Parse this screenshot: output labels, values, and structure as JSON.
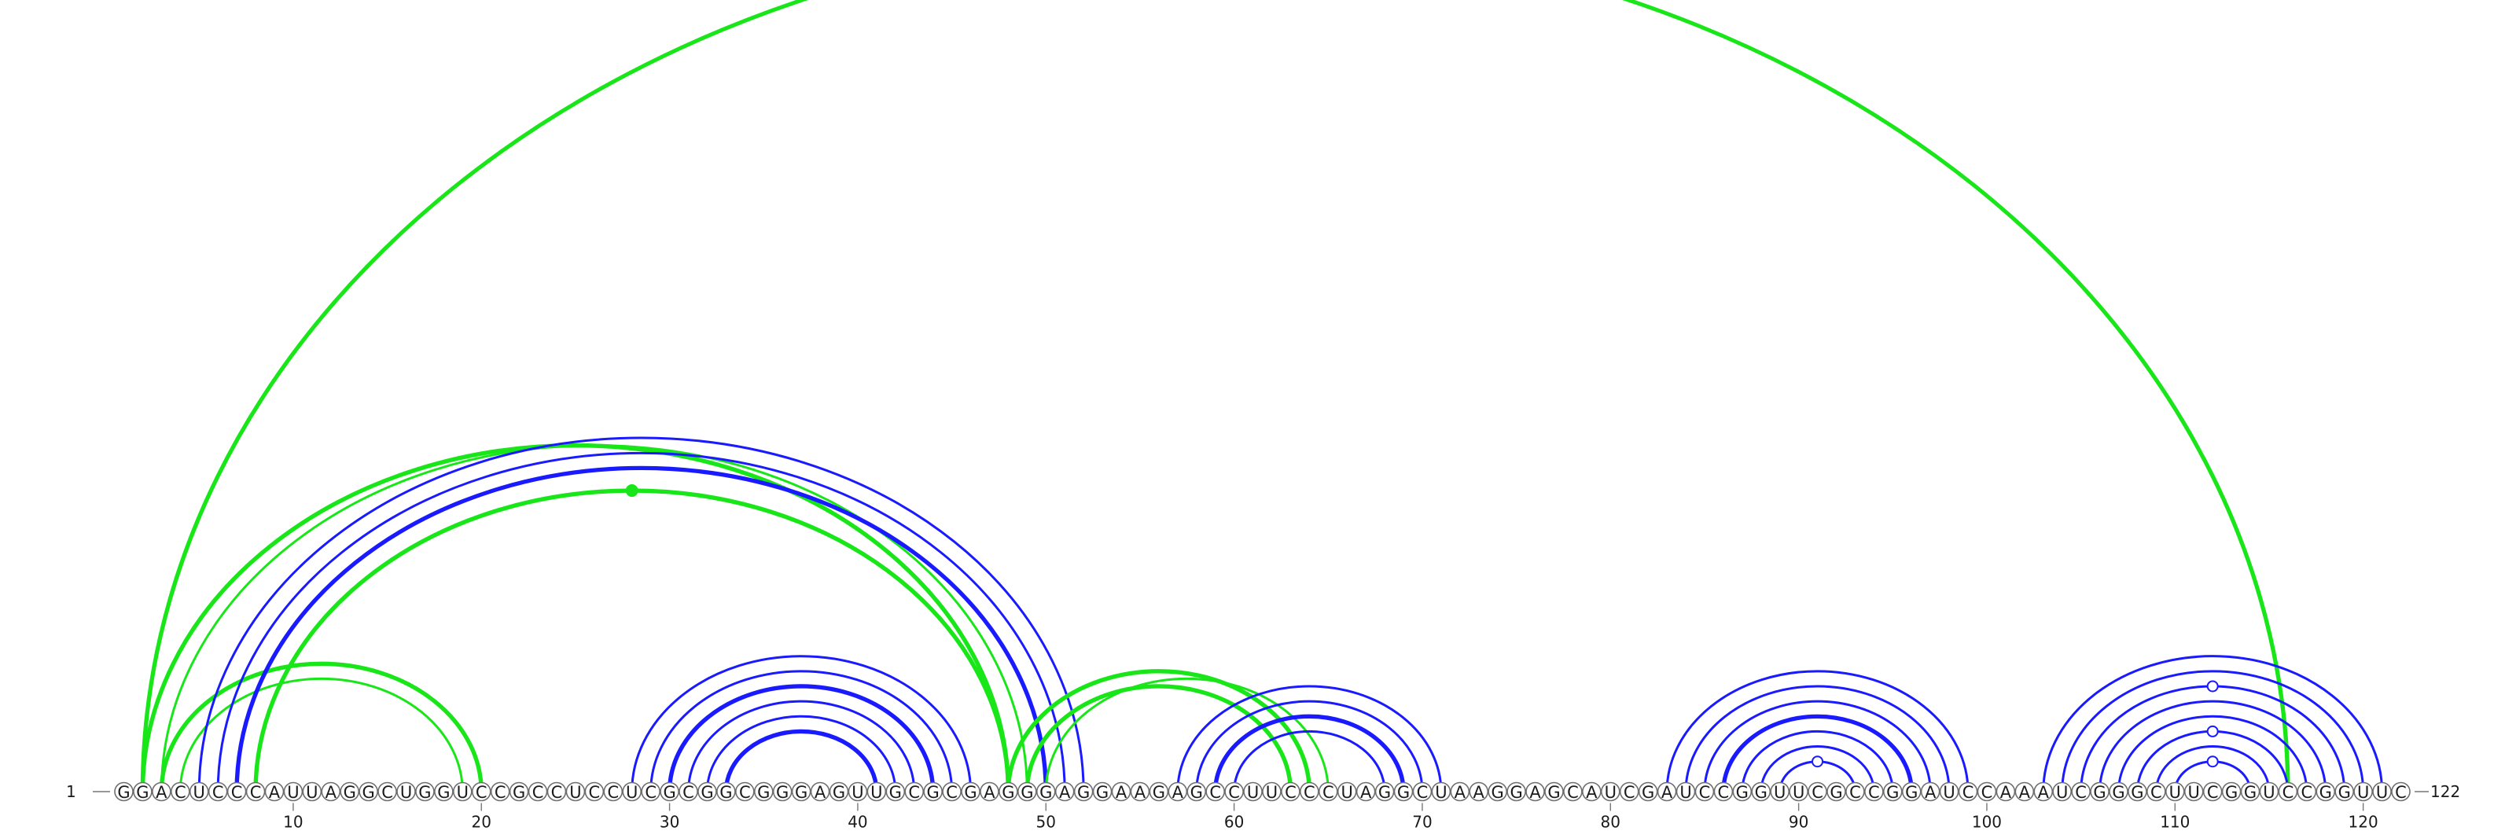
{
  "diagram": {
    "type": "rna-arc-diagram",
    "sequence": "GGACUCCCAUUAGGCUGGUCCGCCUCCUCGCGGCGGGAGUUGCGCGAGGGAGGAAGAGCCUUCCCUAGGCUAAGGAGCAUCGAUCCGGUUCGCCGGAUCCAAAUCGGGCUUCGGUCCGGUUC",
    "start_label": "1",
    "end_label": "122",
    "tick_labels": [
      "10",
      "20",
      "30",
      "40",
      "50",
      "60",
      "70",
      "80",
      "90",
      "100",
      "110",
      "120"
    ],
    "colors": {
      "blue": "#1a1aff",
      "green": "#19e619"
    },
    "arcs": [
      {
        "i": 2,
        "j": 116,
        "color": "green",
        "double": true
      },
      {
        "i": 2,
        "j": 48,
        "color": "green",
        "double": true
      },
      {
        "i": 3,
        "j": 49,
        "color": "green",
        "double": false
      },
      {
        "i": 3,
        "j": 20,
        "color": "green",
        "double": true
      },
      {
        "i": 4,
        "j": 19,
        "color": "green",
        "double": false
      },
      {
        "i": 8,
        "j": 48,
        "color": "green",
        "double": true
      },
      {
        "i": 5,
        "j": 52,
        "color": "blue",
        "double": false
      },
      {
        "i": 6,
        "j": 51,
        "color": "blue",
        "double": false
      },
      {
        "i": 7,
        "j": 50,
        "color": "blue",
        "double": true
      },
      {
        "i": 28,
        "j": 46,
        "color": "blue",
        "double": false
      },
      {
        "i": 29,
        "j": 45,
        "color": "blue",
        "double": false
      },
      {
        "i": 30,
        "j": 44,
        "color": "blue",
        "double": true
      },
      {
        "i": 31,
        "j": 43,
        "color": "blue",
        "double": false
      },
      {
        "i": 32,
        "j": 42,
        "color": "blue",
        "double": false
      },
      {
        "i": 33,
        "j": 41,
        "color": "blue",
        "double": true
      },
      {
        "i": 48,
        "j": 64,
        "color": "green",
        "double": true
      },
      {
        "i": 49,
        "j": 63,
        "color": "green",
        "double": true
      },
      {
        "i": 50,
        "j": 65,
        "color": "green",
        "double": false
      },
      {
        "i": 57,
        "j": 71,
        "color": "blue",
        "double": false
      },
      {
        "i": 58,
        "j": 70,
        "color": "blue",
        "double": false
      },
      {
        "i": 59,
        "j": 69,
        "color": "blue",
        "double": true
      },
      {
        "i": 60,
        "j": 68,
        "color": "blue",
        "double": false
      },
      {
        "i": 83,
        "j": 99,
        "color": "blue",
        "double": false
      },
      {
        "i": 84,
        "j": 98,
        "color": "blue",
        "double": false
      },
      {
        "i": 85,
        "j": 97,
        "color": "blue",
        "double": false
      },
      {
        "i": 86,
        "j": 96,
        "color": "blue",
        "double": true
      },
      {
        "i": 87,
        "j": 95,
        "color": "blue",
        "double": false
      },
      {
        "i": 88,
        "j": 94,
        "color": "blue",
        "double": false
      },
      {
        "i": 89,
        "j": 93,
        "color": "blue",
        "double": false
      },
      {
        "i": 103,
        "j": 121,
        "color": "blue",
        "double": false
      },
      {
        "i": 104,
        "j": 120,
        "color": "blue",
        "double": false
      },
      {
        "i": 105,
        "j": 119,
        "color": "blue",
        "double": false
      },
      {
        "i": 106,
        "j": 118,
        "color": "blue",
        "double": false
      },
      {
        "i": 107,
        "j": 117,
        "color": "blue",
        "double": false
      },
      {
        "i": 108,
        "j": 116,
        "color": "blue",
        "double": false
      },
      {
        "i": 109,
        "j": 115,
        "color": "blue",
        "double": false
      },
      {
        "i": 110,
        "j": 114,
        "color": "blue",
        "double": false
      }
    ],
    "markers": [
      {
        "i": 8,
        "j": 48,
        "fill": "green",
        "filled": true
      },
      {
        "i": 89,
        "j": 93,
        "fill": "blue",
        "filled": false
      },
      {
        "i": 105,
        "j": 119,
        "fill": "blue",
        "filled": false
      },
      {
        "i": 108,
        "j": 116,
        "fill": "blue",
        "filled": false
      },
      {
        "i": 110,
        "j": 114,
        "fill": "blue",
        "filled": false
      }
    ]
  }
}
